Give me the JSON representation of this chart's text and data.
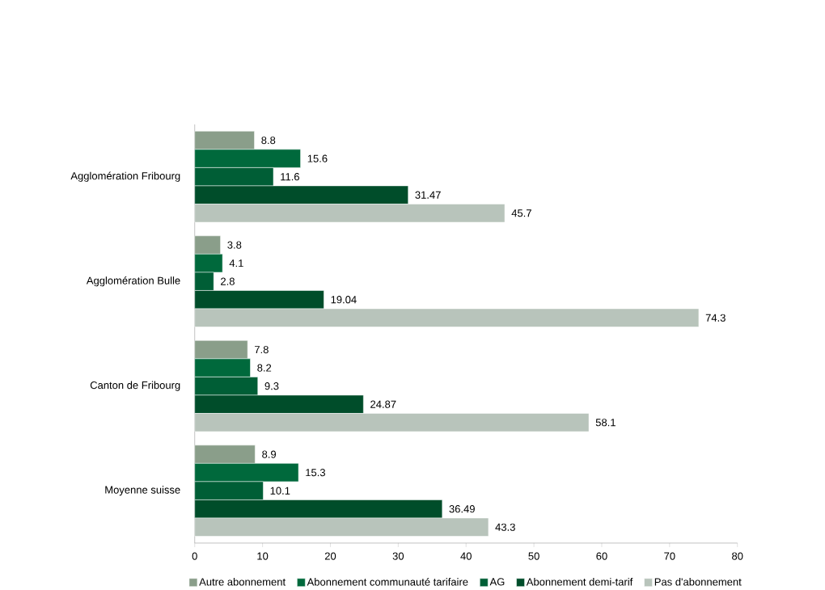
{
  "chart_data": {
    "type": "bar",
    "orientation": "horizontal",
    "categories": [
      "Agglomération Fribourg",
      "Agglomération Bulle",
      "Canton de Fribourg",
      "Moyenne suisse"
    ],
    "series": [
      {
        "name": "Autre abonnement",
        "color": "#8a9e8a",
        "values": [
          8.8,
          3.8,
          7.8,
          8.9
        ]
      },
      {
        "name": "Abonnement communauté tarifaire",
        "color": "#00693c",
        "values": [
          15.6,
          4.1,
          8.2,
          15.3
        ]
      },
      {
        "name": "AG",
        "color": "#005e36",
        "values": [
          11.6,
          2.8,
          9.3,
          10.1
        ]
      },
      {
        "name": "Abonnement demi-tarif",
        "color": "#004d2a",
        "values": [
          31.47,
          19.04,
          24.87,
          36.49
        ]
      },
      {
        "name": "Pas d'abonnement",
        "color": "#b8c4bb",
        "values": [
          45.7,
          74.3,
          58.1,
          43.3
        ]
      }
    ],
    "xlim": [
      0,
      80
    ],
    "xticks": [
      0,
      10,
      20,
      30,
      40,
      50,
      60,
      70,
      80
    ],
    "data_labels": true,
    "legend": "bottom",
    "grid": false
  }
}
